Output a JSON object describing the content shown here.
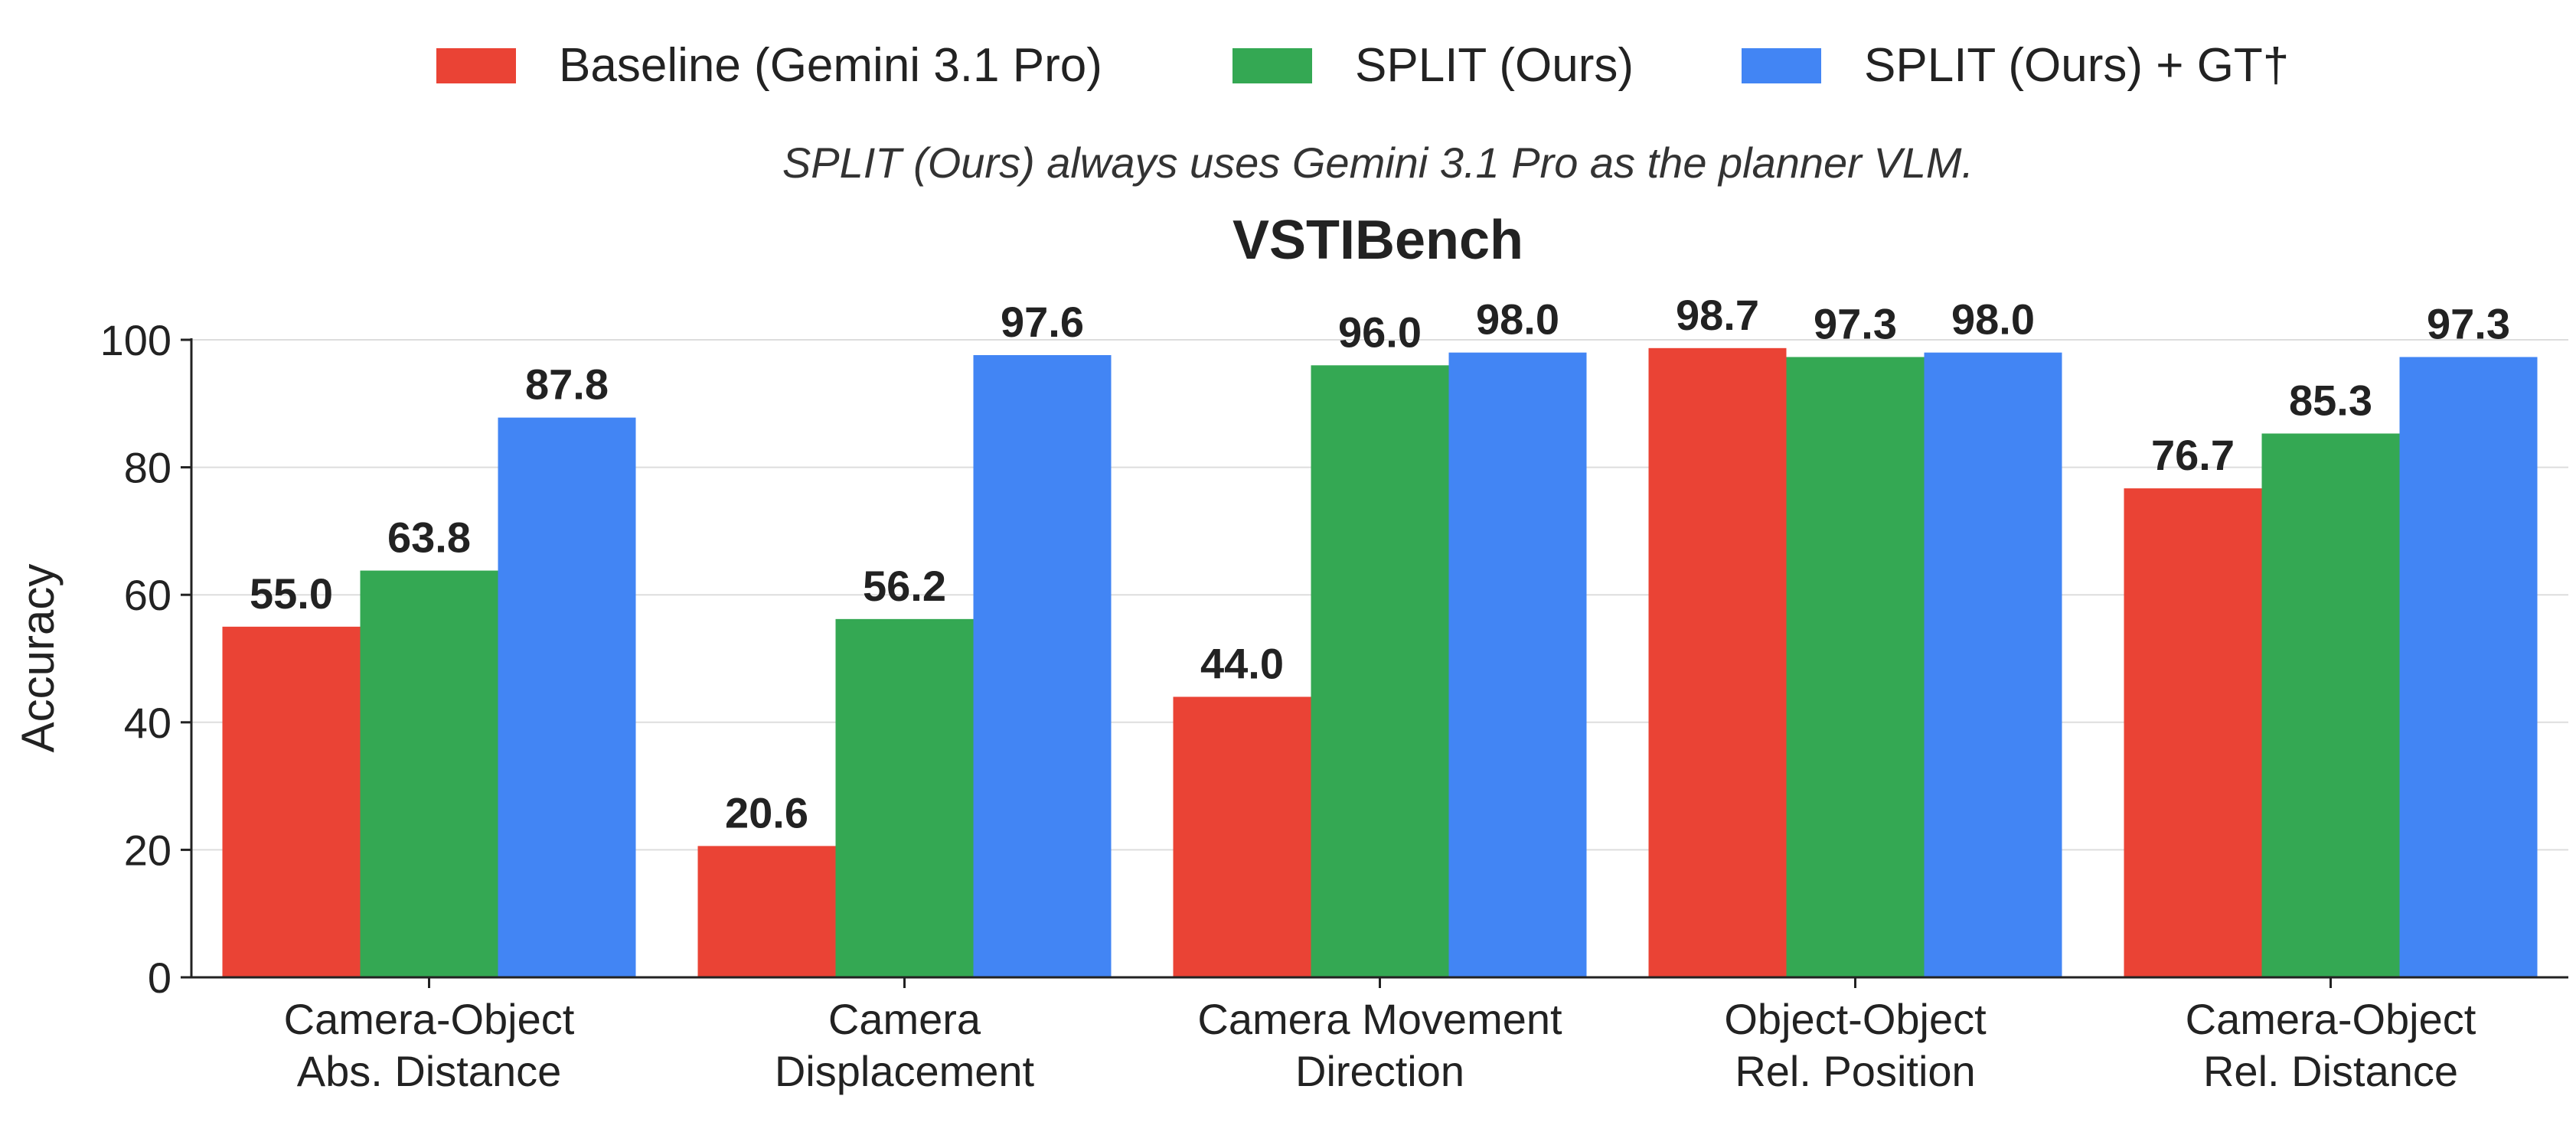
{
  "chart_data": {
    "type": "bar",
    "title": "VSTIBench",
    "subtitle": "SPLIT (Ours) always uses Gemini 3.1 Pro as the planner VLM.",
    "xlabel": "",
    "ylabel": "Accuracy",
    "ylim": [
      0,
      100
    ],
    "yticks": [
      "0",
      "20",
      "40",
      "60",
      "80",
      "100"
    ],
    "grid": true,
    "legend_position": "top-center",
    "categories": [
      [
        "Camera-Object",
        "Abs. Distance"
      ],
      [
        "Camera",
        "Displacement"
      ],
      [
        "Camera Movement",
        "Direction"
      ],
      [
        "Object-Object",
        "Rel. Position"
      ],
      [
        "Camera-Object",
        "Rel. Distance"
      ]
    ],
    "series": [
      {
        "name": "Baseline (Gemini 3.1 Pro)",
        "color": "#EA4335",
        "values": [
          55.0,
          20.6,
          44.0,
          98.7,
          76.7
        ],
        "labels": [
          "55.0",
          "20.6",
          "44.0",
          "98.7",
          "76.7"
        ]
      },
      {
        "name": "SPLIT (Ours)",
        "color": "#34A853",
        "values": [
          63.8,
          56.2,
          96.0,
          97.3,
          85.3
        ],
        "labels": [
          "63.8",
          "56.2",
          "96.0",
          "97.3",
          "85.3"
        ]
      },
      {
        "name": "SPLIT (Ours) + GT†",
        "color": "#4285F4",
        "values": [
          87.8,
          97.6,
          98.0,
          98.0,
          97.3
        ],
        "labels": [
          "87.8",
          "97.6",
          "98.0",
          "98.0",
          "97.3"
        ]
      }
    ]
  }
}
